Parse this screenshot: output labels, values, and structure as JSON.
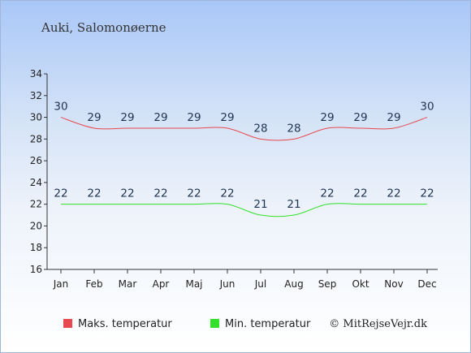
{
  "chart_data": {
    "type": "line",
    "title": "Auki, Salomonøerne",
    "categories": [
      "Jan",
      "Feb",
      "Mar",
      "Apr",
      "Maj",
      "Jun",
      "Jul",
      "Aug",
      "Sep",
      "Okt",
      "Nov",
      "Dec"
    ],
    "series": [
      {
        "name": "Maks. temperatur",
        "color": "#e8484f",
        "values": [
          30,
          29,
          29,
          29,
          29,
          29,
          28,
          28,
          29,
          29,
          29,
          30
        ]
      },
      {
        "name": "Min. temperatur",
        "color": "#33e02a",
        "values": [
          22,
          22,
          22,
          22,
          22,
          22,
          21,
          21,
          22,
          22,
          22,
          22
        ]
      }
    ],
    "yticks": [
      16,
      18,
      20,
      22,
      24,
      26,
      28,
      30,
      32,
      34
    ],
    "ylim": [
      16,
      34
    ],
    "grid": false,
    "legend_position": "bottom-left"
  },
  "credit": "© MitRejseVejr.dk"
}
